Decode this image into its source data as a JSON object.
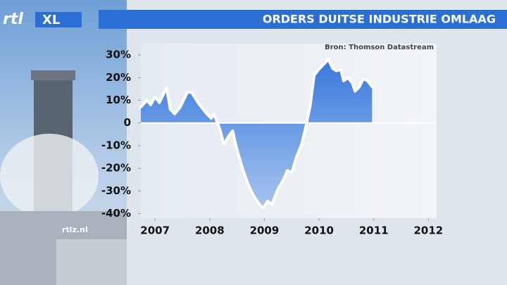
{
  "chart_data": {
    "type": "line",
    "title": "ORDERS DUITSE INDUSTRIE OMLAAG",
    "source": "Bron: Thomson Datastream",
    "brand": "rtlz.nl",
    "x": [
      2006.74,
      2006.85,
      2006.92,
      2007.0,
      2007.08,
      2007.21,
      2007.28,
      2007.36,
      2007.46,
      2007.59,
      2007.67,
      2007.8,
      2007.93,
      2008.03,
      2008.08,
      2008.19,
      2008.26,
      2008.34,
      2008.42,
      2008.49,
      2008.6,
      2008.7,
      2008.8,
      2008.91,
      2008.98,
      2009.06,
      2009.14,
      2009.24,
      2009.35,
      2009.42,
      2009.5,
      2009.58,
      2009.68,
      2009.76,
      2009.84,
      2009.91,
      2009.99,
      2010.09,
      2010.17,
      2010.25,
      2010.32,
      2010.4,
      2010.45,
      2010.53,
      2010.61,
      2010.66,
      2010.74,
      2010.81,
      2010.89,
      2010.97
    ],
    "series": [
      {
        "color": "#ffffff",
        "fill": "#3f7fe0",
        "values": [
          7,
          10,
          8,
          11.5,
          9,
          15.5,
          6,
          4,
          7,
          13.5,
          13.5,
          8.5,
          4.5,
          2,
          4,
          -3,
          -9.5,
          -6,
          -3.5,
          -11,
          -20,
          -27,
          -32,
          -36,
          -37.5,
          -34.5,
          -36,
          -29.5,
          -25,
          -21,
          -22,
          -15.5,
          -9.5,
          -1.5,
          8,
          21,
          23.5,
          26,
          28,
          24,
          23,
          23.5,
          18.5,
          20,
          17.5,
          14,
          16,
          19.5,
          18.5,
          16
        ]
      }
    ],
    "xlim": [
      2006.74,
      2012.15
    ],
    "xticks": [
      2007,
      2008,
      2009,
      2010,
      2011,
      2012
    ],
    "ylim": [
      -42,
      35
    ],
    "yticks": [
      {
        "value": 30,
        "label": "30%"
      },
      {
        "value": 20,
        "label": "20%"
      },
      {
        "value": 10,
        "label": "10%"
      },
      0,
      {
        "value": -10,
        "label": "-10%"
      },
      {
        "value": -20,
        "label": "-20%"
      },
      {
        "value": -30,
        "label": "-30%"
      },
      {
        "value": -40,
        "label": "-40%"
      }
    ]
  }
}
